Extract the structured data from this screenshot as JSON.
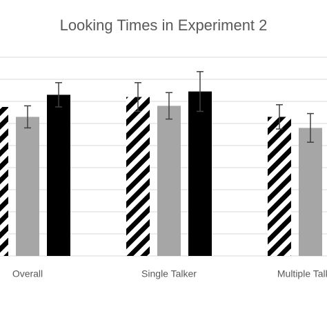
{
  "chart_data": {
    "type": "bar",
    "title": "Looking Times in Experiment 2",
    "categories": [
      "Overall",
      "Single Talker",
      "Multiple Talkers"
    ],
    "series": [
      {
        "color": "#000000",
        "pattern": "diagonal-stripes",
        "values": [
          6.75,
          7.2,
          6.3
        ],
        "errors": [
          null,
          0.65,
          0.55
        ]
      },
      {
        "color": "#a6a6a6",
        "values": [
          6.3,
          6.8,
          5.8
        ],
        "errors": [
          0.5,
          0.6,
          0.65
        ]
      },
      {
        "color": "#000000",
        "values": [
          7.3,
          7.45,
          null
        ],
        "errors": [
          0.55,
          0.9,
          null
        ]
      }
    ],
    "ylim": [
      0,
      9
    ],
    "yticks": [
      0,
      1,
      2,
      3,
      4,
      5,
      6,
      7,
      8,
      9
    ],
    "grid": true
  }
}
